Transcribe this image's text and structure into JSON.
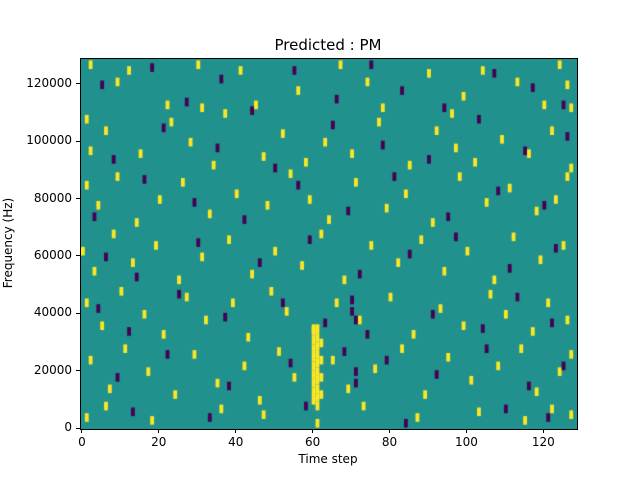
{
  "chart_data": {
    "type": "heatmap",
    "title": "Predicted : PM",
    "xlabel": "Time step",
    "ylabel": "Frequency (Hz)",
    "x_range": [
      -0.5,
      128.5
    ],
    "y_range": [
      0,
      129000
    ],
    "x_ticks": [
      0,
      20,
      40,
      60,
      80,
      100,
      120
    ],
    "y_ticks": [
      0,
      20000,
      40000,
      60000,
      80000,
      100000,
      120000
    ],
    "legend": "none",
    "grid": false,
    "colors": {
      "background": "#20918c",
      "high": "#fde725",
      "low": "#440154",
      "figure_background": "#ffffff",
      "axis": "#000000"
    },
    "cell": {
      "width_steps": 1,
      "height_hz": 3000
    },
    "points_high": [
      [
        2,
        127000
      ],
      [
        9,
        121000
      ],
      [
        12,
        125000
      ],
      [
        22,
        113000
      ],
      [
        30,
        127000
      ],
      [
        31,
        112000
      ],
      [
        37,
        110000
      ],
      [
        41,
        125000
      ],
      [
        45,
        113000
      ],
      [
        56,
        118000
      ],
      [
        67,
        127000
      ],
      [
        74,
        121000
      ],
      [
        78,
        112000
      ],
      [
        90,
        124000
      ],
      [
        96,
        110000
      ],
      [
        99,
        116000
      ],
      [
        104,
        125000
      ],
      [
        113,
        121000
      ],
      [
        120,
        113000
      ],
      [
        124,
        127000
      ],
      [
        126,
        120000
      ],
      [
        127,
        112000
      ],
      [
        1,
        108000
      ],
      [
        2,
        97000
      ],
      [
        6,
        104000
      ],
      [
        15,
        96000
      ],
      [
        23,
        107000
      ],
      [
        28,
        100000
      ],
      [
        34,
        92000
      ],
      [
        47,
        95000
      ],
      [
        52,
        103000
      ],
      [
        58,
        93000
      ],
      [
        63,
        100000
      ],
      [
        70,
        96000
      ],
      [
        77,
        107000
      ],
      [
        85,
        92000
      ],
      [
        92,
        104000
      ],
      [
        97,
        98000
      ],
      [
        102,
        93000
      ],
      [
        109,
        101000
      ],
      [
        116,
        96000
      ],
      [
        122,
        104000
      ],
      [
        127,
        91000
      ],
      [
        1,
        85000
      ],
      [
        4,
        78000
      ],
      [
        9,
        88000
      ],
      [
        14,
        72000
      ],
      [
        20,
        80000
      ],
      [
        26,
        86000
      ],
      [
        33,
        75000
      ],
      [
        40,
        82000
      ],
      [
        48,
        78000
      ],
      [
        54,
        89000
      ],
      [
        59,
        80000
      ],
      [
        64,
        73000
      ],
      [
        71,
        86000
      ],
      [
        79,
        77000
      ],
      [
        84,
        82000
      ],
      [
        91,
        72000
      ],
      [
        98,
        88000
      ],
      [
        105,
        79000
      ],
      [
        111,
        84000
      ],
      [
        118,
        76000
      ],
      [
        123,
        80000
      ],
      [
        126,
        88000
      ],
      [
        0,
        62000
      ],
      [
        3,
        55000
      ],
      [
        8,
        68000
      ],
      [
        13,
        58000
      ],
      [
        19,
        64000
      ],
      [
        25,
        52000
      ],
      [
        31,
        60000
      ],
      [
        38,
        66000
      ],
      [
        44,
        54000
      ],
      [
        50,
        62000
      ],
      [
        57,
        57000
      ],
      [
        62,
        68000
      ],
      [
        68,
        52000
      ],
      [
        75,
        64000
      ],
      [
        82,
        58000
      ],
      [
        88,
        66000
      ],
      [
        94,
        55000
      ],
      [
        100,
        62000
      ],
      [
        107,
        52000
      ],
      [
        112,
        67000
      ],
      [
        119,
        59000
      ],
      [
        125,
        64000
      ],
      [
        1,
        44000
      ],
      [
        5,
        36000
      ],
      [
        10,
        48000
      ],
      [
        16,
        40000
      ],
      [
        21,
        33000
      ],
      [
        27,
        46000
      ],
      [
        32,
        38000
      ],
      [
        39,
        44000
      ],
      [
        43,
        32000
      ],
      [
        49,
        48000
      ],
      [
        53,
        41000
      ],
      [
        60,
        35000
      ],
      [
        66,
        44000
      ],
      [
        72,
        38000
      ],
      [
        80,
        46000
      ],
      [
        86,
        33000
      ],
      [
        93,
        42000
      ],
      [
        99,
        36000
      ],
      [
        106,
        47000
      ],
      [
        110,
        40000
      ],
      [
        117,
        34000
      ],
      [
        121,
        44000
      ],
      [
        126,
        38000
      ],
      [
        2,
        24000
      ],
      [
        7,
        14000
      ],
      [
        11,
        28000
      ],
      [
        17,
        20000
      ],
      [
        24,
        12000
      ],
      [
        29,
        26000
      ],
      [
        35,
        16000
      ],
      [
        42,
        22000
      ],
      [
        46,
        10000
      ],
      [
        51,
        27000
      ],
      [
        55,
        18000
      ],
      [
        65,
        24000
      ],
      [
        69,
        14000
      ],
      [
        76,
        21000
      ],
      [
        83,
        28000
      ],
      [
        89,
        12000
      ],
      [
        95,
        25000
      ],
      [
        101,
        17000
      ],
      [
        108,
        22000
      ],
      [
        114,
        28000
      ],
      [
        118,
        13000
      ],
      [
        124,
        20000
      ],
      [
        127,
        26000
      ],
      [
        1,
        4000
      ],
      [
        6,
        8000
      ],
      [
        18,
        3000
      ],
      [
        36,
        7000
      ],
      [
        47,
        5000
      ],
      [
        61,
        2000
      ],
      [
        73,
        8000
      ],
      [
        87,
        4000
      ],
      [
        103,
        6000
      ],
      [
        115,
        3000
      ],
      [
        122,
        7000
      ],
      [
        127,
        5000
      ],
      [
        60,
        10000
      ],
      [
        60,
        13000
      ],
      [
        60,
        16000
      ],
      [
        60,
        19000
      ],
      [
        60,
        22000
      ],
      [
        60,
        25000
      ],
      [
        60,
        28000
      ],
      [
        60,
        31000
      ],
      [
        61,
        8000
      ],
      [
        61,
        11000
      ],
      [
        61,
        14000
      ],
      [
        61,
        17000
      ],
      [
        61,
        20000
      ],
      [
        61,
        23000
      ],
      [
        61,
        26000
      ],
      [
        61,
        29000
      ],
      [
        61,
        32000
      ],
      [
        62,
        12000
      ],
      [
        62,
        18000
      ],
      [
        62,
        24000
      ],
      [
        62,
        30000
      ],
      [
        60,
        34000
      ],
      [
        61,
        35000
      ]
    ],
    "points_low": [
      [
        5,
        120000
      ],
      [
        18,
        126000
      ],
      [
        27,
        114000
      ],
      [
        36,
        122000
      ],
      [
        44,
        111000
      ],
      [
        55,
        125000
      ],
      [
        66,
        115000
      ],
      [
        75,
        127000
      ],
      [
        83,
        118000
      ],
      [
        94,
        112000
      ],
      [
        107,
        124000
      ],
      [
        117,
        119000
      ],
      [
        125,
        113000
      ],
      [
        8,
        94000
      ],
      [
        21,
        105000
      ],
      [
        35,
        98000
      ],
      [
        50,
        91000
      ],
      [
        65,
        106000
      ],
      [
        78,
        99000
      ],
      [
        90,
        94000
      ],
      [
        103,
        108000
      ],
      [
        115,
        97000
      ],
      [
        126,
        102000
      ],
      [
        3,
        74000
      ],
      [
        16,
        87000
      ],
      [
        29,
        79000
      ],
      [
        42,
        73000
      ],
      [
        56,
        85000
      ],
      [
        69,
        76000
      ],
      [
        81,
        88000
      ],
      [
        95,
        74000
      ],
      [
        108,
        83000
      ],
      [
        120,
        78000
      ],
      [
        6,
        60000
      ],
      [
        14,
        53000
      ],
      [
        30,
        65000
      ],
      [
        46,
        58000
      ],
      [
        59,
        66000
      ],
      [
        72,
        54000
      ],
      [
        85,
        61000
      ],
      [
        97,
        67000
      ],
      [
        111,
        56000
      ],
      [
        123,
        63000
      ],
      [
        4,
        42000
      ],
      [
        12,
        34000
      ],
      [
        25,
        47000
      ],
      [
        37,
        39000
      ],
      [
        52,
        44000
      ],
      [
        63,
        37000
      ],
      [
        70,
        45000
      ],
      [
        70,
        41000
      ],
      [
        71,
        38000
      ],
      [
        74,
        33000
      ],
      [
        91,
        40000
      ],
      [
        104,
        35000
      ],
      [
        113,
        46000
      ],
      [
        122,
        37000
      ],
      [
        9,
        18000
      ],
      [
        22,
        26000
      ],
      [
        38,
        15000
      ],
      [
        54,
        23000
      ],
      [
        68,
        27000
      ],
      [
        71,
        20000
      ],
      [
        71,
        16000
      ],
      [
        79,
        24000
      ],
      [
        92,
        19000
      ],
      [
        105,
        28000
      ],
      [
        116,
        15000
      ],
      [
        125,
        22000
      ],
      [
        13,
        6000
      ],
      [
        33,
        4000
      ],
      [
        58,
        8000
      ],
      [
        84,
        2000
      ],
      [
        110,
        7000
      ],
      [
        121,
        4000
      ]
    ]
  }
}
